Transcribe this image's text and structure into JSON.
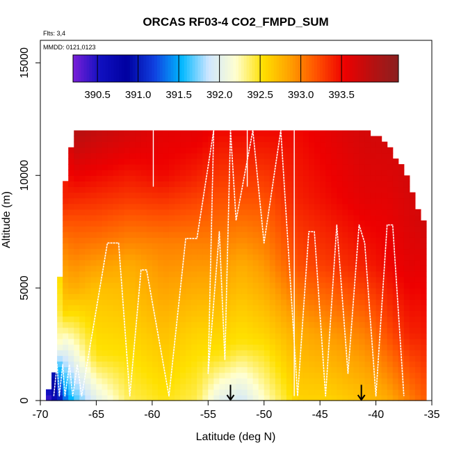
{
  "chart_data": {
    "type": "heatmap",
    "title": "ORCAS RF03-4 CO2_FMPD_SUM",
    "flights_note": "Flts: 3,4",
    "date_note": "MMDD: 0121,0123",
    "xlabel": "Latitude (deg N)",
    "ylabel": "Altitude (m)",
    "xlim": [
      -70,
      -35
    ],
    "ylim": [
      0,
      16000
    ],
    "x_ticks": [
      -70,
      -65,
      -60,
      -55,
      -50,
      -45,
      -40,
      -35
    ],
    "x_tick_labels": [
      "-70",
      "-65",
      "-60",
      "-55",
      "-50",
      "-45",
      "-40",
      "-35"
    ],
    "y_ticks": [
      0,
      5000,
      10000,
      15000
    ],
    "y_tick_labels": [
      "0",
      "5000",
      "10000",
      "15000"
    ],
    "colorbar": {
      "range": [
        390.2,
        394.2
      ],
      "ticks": [
        390.5,
        391.0,
        391.5,
        392.0,
        392.5,
        393.0,
        393.5
      ],
      "tick_labels": [
        "390.5",
        "391.0",
        "391.5",
        "392.0",
        "392.5",
        "393.0",
        "393.5"
      ],
      "colors": [
        "#7a1fd8",
        "#1010c0",
        "#0000a0",
        "#1040e0",
        "#00b8ff",
        "#cfe6ff",
        "#ffffd0",
        "#ffe000",
        "#ffa000",
        "#ff5000",
        "#ee0000",
        "#b81010",
        "#8a2020"
      ]
    },
    "column_profiles": [
      {
        "lat": -69,
        "top": 500,
        "values": [
          [
            0,
            390.4
          ],
          [
            500,
            390.6
          ]
        ]
      },
      {
        "lat": -68.5,
        "top": 2000,
        "values": [
          [
            0,
            390.8
          ],
          [
            1500,
            391.5
          ],
          [
            2500,
            392.3
          ]
        ]
      },
      {
        "lat": -68,
        "top": 9000,
        "values": [
          [
            0,
            391.2
          ],
          [
            2000,
            391.9
          ],
          [
            4000,
            392.6
          ],
          [
            7000,
            393.0
          ],
          [
            9000,
            393.4
          ]
        ]
      },
      {
        "lat": -67,
        "top": 12000,
        "values": [
          [
            0,
            391.6
          ],
          [
            2500,
            392.2
          ],
          [
            5000,
            392.8
          ],
          [
            8000,
            393.2
          ],
          [
            12000,
            393.9
          ]
        ]
      },
      {
        "lat": -65,
        "top": 12000,
        "values": [
          [
            0,
            392.0
          ],
          [
            2000,
            392.5
          ],
          [
            5000,
            392.7
          ],
          [
            8000,
            393.2
          ],
          [
            12000,
            393.8
          ]
        ]
      },
      {
        "lat": -62,
        "top": 12000,
        "values": [
          [
            0,
            392.4
          ],
          [
            3000,
            392.6
          ],
          [
            6000,
            392.8
          ],
          [
            9000,
            393.3
          ],
          [
            12000,
            393.7
          ]
        ]
      },
      {
        "lat": -59,
        "top": 12000,
        "values": [
          [
            0,
            392.5
          ],
          [
            3000,
            392.7
          ],
          [
            7000,
            393.0
          ],
          [
            10000,
            393.5
          ],
          [
            12000,
            393.6
          ]
        ]
      },
      {
        "lat": -56,
        "top": 12000,
        "values": [
          [
            0,
            392.4
          ],
          [
            3000,
            392.6
          ],
          [
            7000,
            393.0
          ],
          [
            10000,
            393.4
          ],
          [
            12000,
            393.6
          ]
        ]
      },
      {
        "lat": -54,
        "top": 12000,
        "values": [
          [
            0,
            392.0
          ],
          [
            2000,
            392.5
          ],
          [
            7000,
            393.0
          ],
          [
            10000,
            393.3
          ],
          [
            12000,
            393.5
          ]
        ]
      },
      {
        "lat": -52,
        "top": 12000,
        "values": [
          [
            0,
            391.9
          ],
          [
            2500,
            392.5
          ],
          [
            6000,
            392.8
          ],
          [
            9000,
            393.2
          ],
          [
            12000,
            393.5
          ]
        ]
      },
      {
        "lat": -50,
        "top": 12000,
        "values": [
          [
            0,
            392.2
          ],
          [
            3000,
            392.6
          ],
          [
            7000,
            393.0
          ],
          [
            10000,
            393.3
          ],
          [
            12000,
            393.5
          ]
        ]
      },
      {
        "lat": -47,
        "top": 12000,
        "values": [
          [
            0,
            392.6
          ],
          [
            3000,
            392.8
          ],
          [
            6000,
            393.2
          ],
          [
            9000,
            393.4
          ],
          [
            12000,
            393.5
          ]
        ]
      },
      {
        "lat": -44,
        "top": 12000,
        "values": [
          [
            0,
            392.6
          ],
          [
            3000,
            392.9
          ],
          [
            6000,
            393.3
          ],
          [
            9000,
            393.5
          ],
          [
            12000,
            393.6
          ]
        ]
      },
      {
        "lat": -41,
        "top": 12000,
        "values": [
          [
            0,
            392.7
          ],
          [
            3000,
            393.0
          ],
          [
            6000,
            393.4
          ],
          [
            9000,
            393.6
          ],
          [
            12000,
            393.7
          ]
        ]
      },
      {
        "lat": -39,
        "top": 11500,
        "values": [
          [
            0,
            392.8
          ],
          [
            3000,
            393.2
          ],
          [
            6000,
            393.5
          ],
          [
            9000,
            393.6
          ],
          [
            11500,
            393.7
          ]
        ]
      },
      {
        "lat": -37,
        "top": 9800,
        "values": [
          [
            0,
            393.0
          ],
          [
            3000,
            393.4
          ],
          [
            6000,
            393.6
          ],
          [
            9800,
            393.7
          ]
        ]
      },
      {
        "lat": -36,
        "top": 8000,
        "values": [
          [
            0,
            393.1
          ],
          [
            3000,
            393.4
          ],
          [
            8000,
            393.7
          ]
        ]
      }
    ],
    "flight_track": [
      [
        -68.8,
        200
      ],
      [
        -68.5,
        1600
      ],
      [
        -68.3,
        200
      ],
      [
        -68.0,
        1600
      ],
      [
        -67.8,
        200
      ],
      [
        -67.4,
        1600
      ],
      [
        -67.1,
        200
      ],
      [
        -66.7,
        1600
      ],
      [
        -66.3,
        200
      ],
      [
        -64.0,
        7000
      ],
      [
        -63.0,
        7000
      ],
      [
        -62.0,
        200
      ],
      [
        -61.0,
        5800
      ],
      [
        -60.5,
        5800
      ],
      [
        -58.5,
        200
      ],
      [
        -57.0,
        7200
      ],
      [
        -56.0,
        7200
      ],
      [
        -54.5,
        12000
      ],
      [
        -55.0,
        1200
      ],
      [
        -54.0,
        7500
      ],
      [
        -53.5,
        1800
      ],
      [
        -53.0,
        12000
      ],
      [
        -52.5,
        8000
      ],
      [
        -51.0,
        12000
      ],
      [
        -50.0,
        7000
      ],
      [
        -48.5,
        12000
      ],
      [
        -47.0,
        200
      ],
      [
        -46.0,
        7500
      ],
      [
        -45.5,
        7500
      ],
      [
        -44.5,
        200
      ],
      [
        -43.5,
        7800
      ],
      [
        -42.5,
        1200
      ],
      [
        -41.5,
        7800
      ],
      [
        -41.0,
        7000
      ],
      [
        -40.0,
        200
      ],
      [
        -39.0,
        7800
      ],
      [
        -38.5,
        7800
      ],
      [
        -37.5,
        200
      ]
    ],
    "vertical_tracks": [
      {
        "lat": -47.3,
        "bottom": 200,
        "top": 12000
      },
      {
        "lat": -59.9,
        "bottom": 9500,
        "top": 12000
      },
      {
        "lat": -51.5,
        "bottom": 9500,
        "top": 12000
      }
    ],
    "arrows": [
      {
        "lat": -53.0,
        "from_alt": 700,
        "to_alt": 0
      },
      {
        "lat": -41.3,
        "from_alt": 700,
        "to_alt": 0
      }
    ]
  }
}
